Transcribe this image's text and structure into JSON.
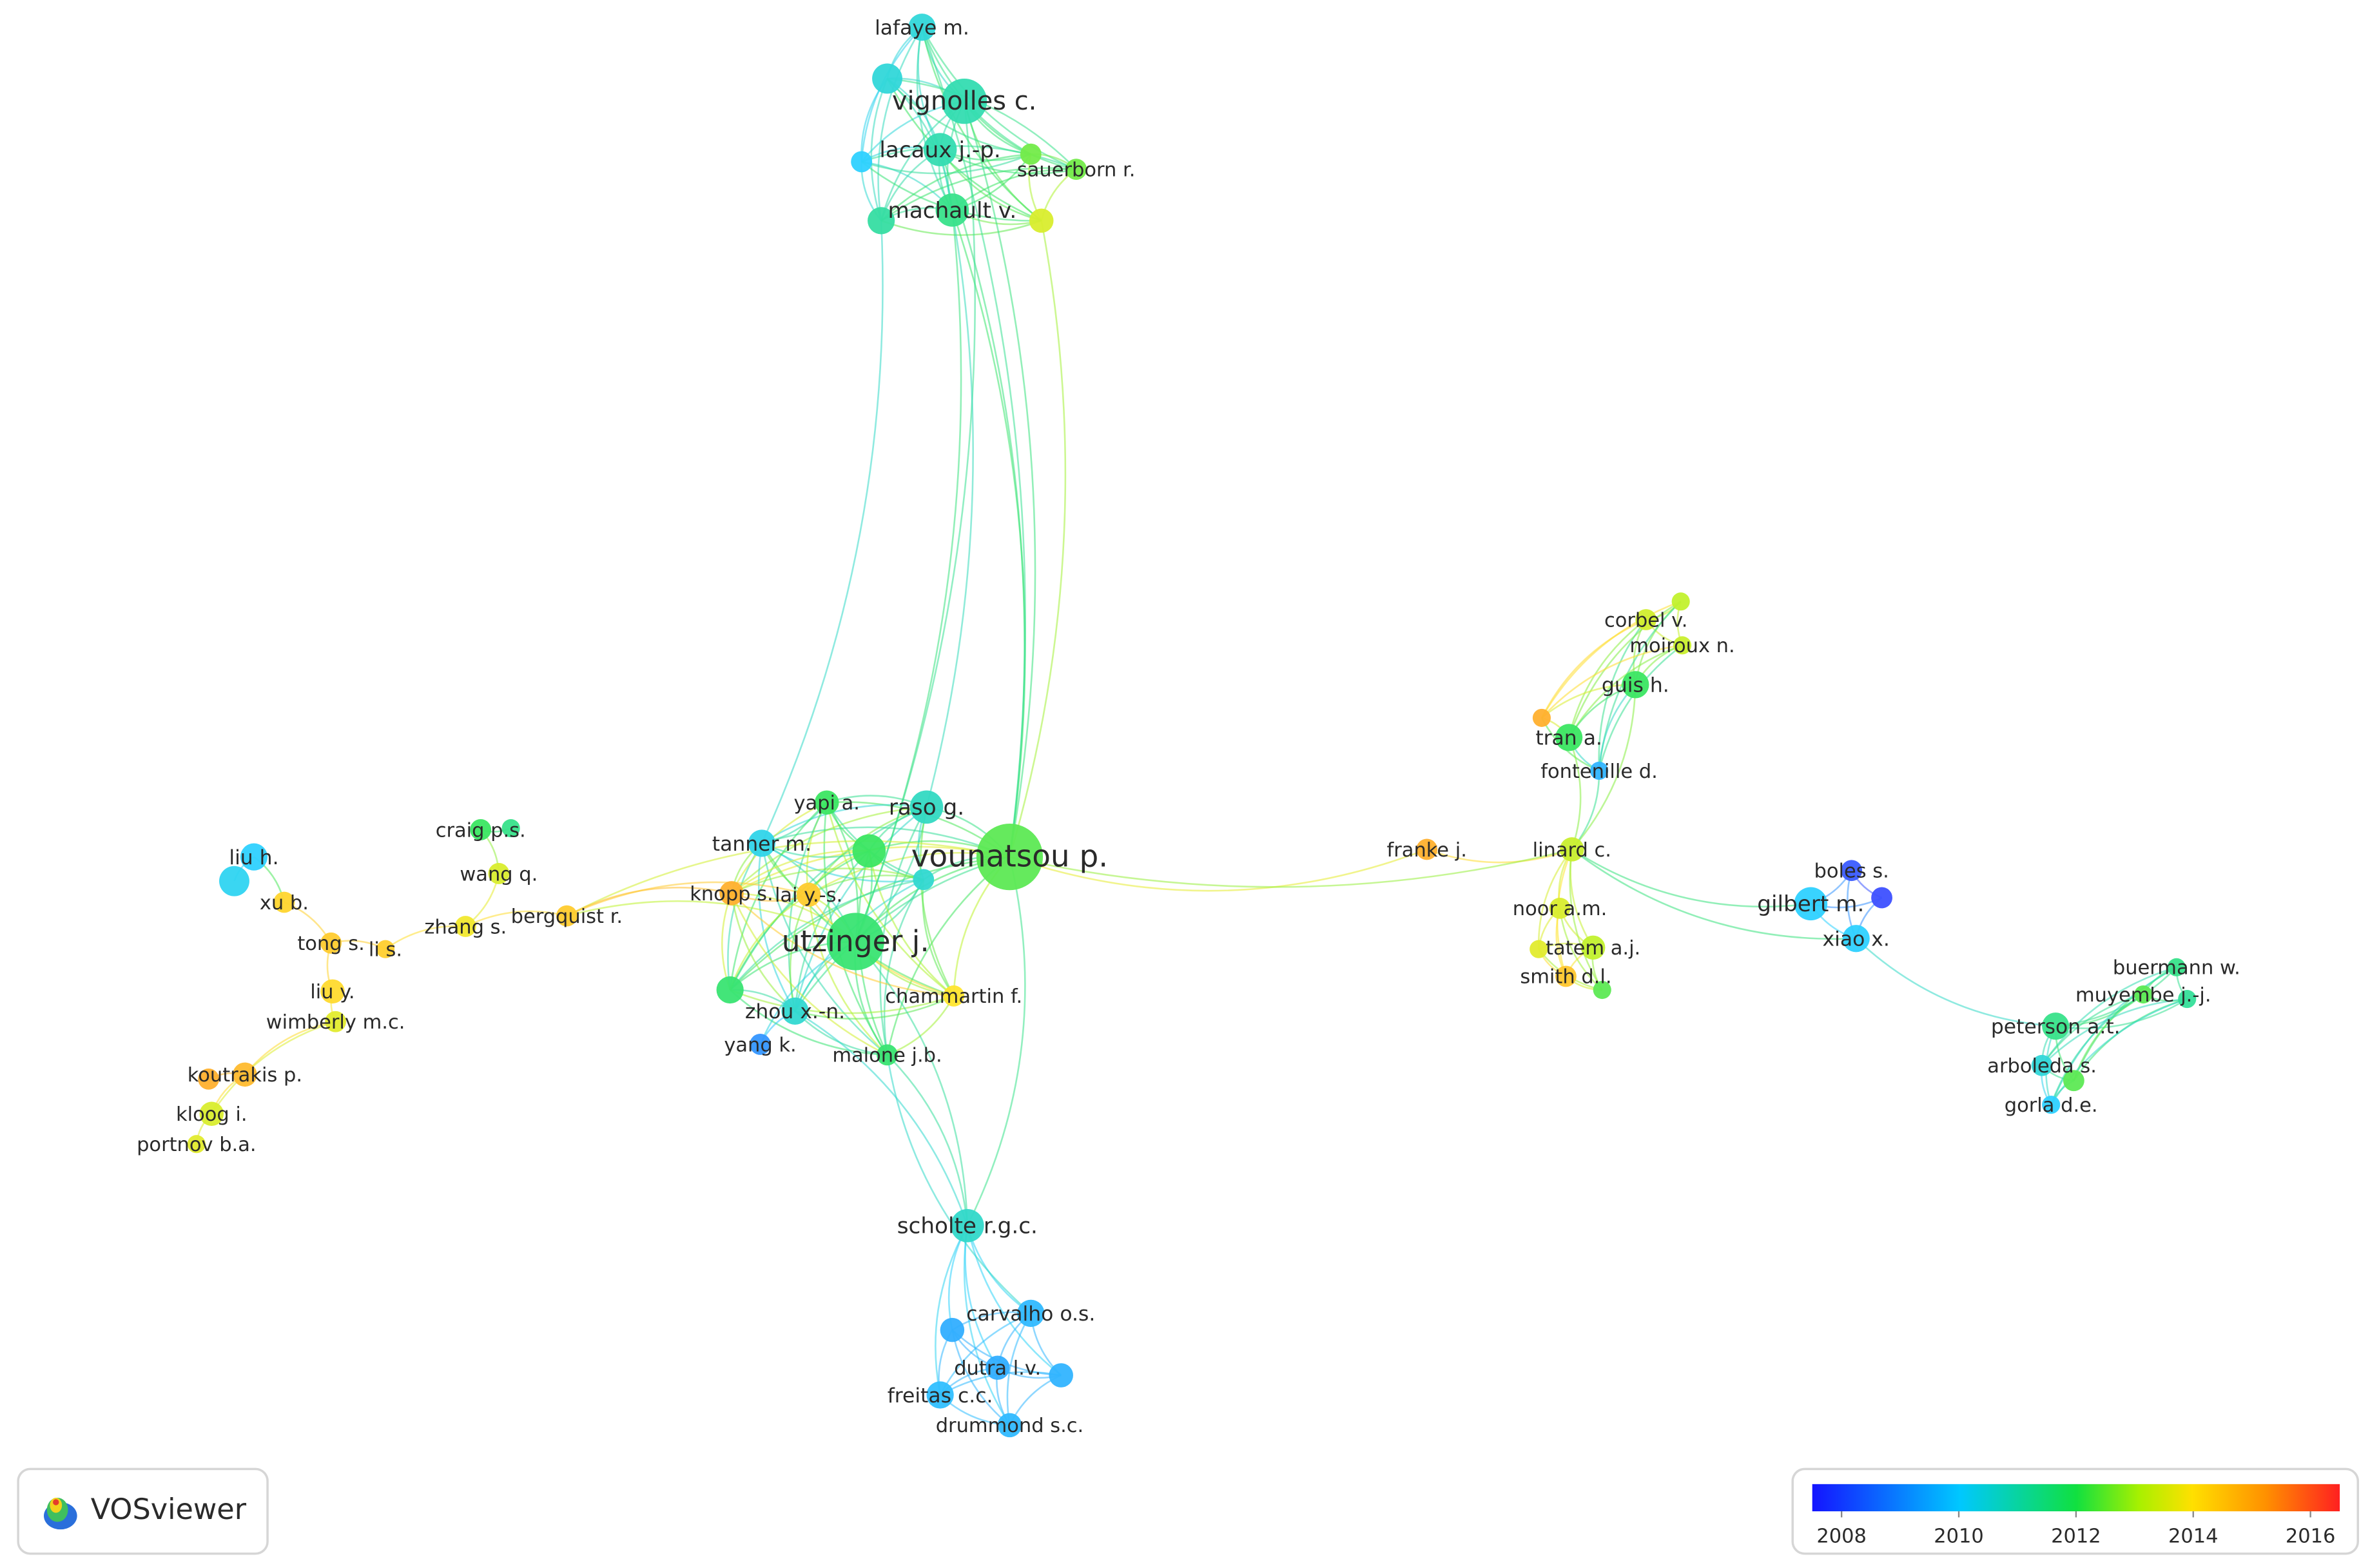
{
  "logo": "VOSviewer",
  "colorbar": {
    "range": [
      2007.5,
      2016.5
    ],
    "ticks": [
      2008,
      2010,
      2012,
      2014,
      2016
    ]
  },
  "nodes": [
    {
      "label": "lafaye m.",
      "year": 2010.5
    },
    {
      "label": "vignolles c.",
      "year": 2011
    },
    {
      "label": "lacaux j.-p.",
      "year": 2011
    },
    {
      "label": "sauerborn r.",
      "year": 2012.5
    },
    {
      "label": "machault v.",
      "year": 2011.5
    },
    {
      "label": null,
      "year": 2010.5
    },
    {
      "label": null,
      "year": 2010
    },
    {
      "label": null,
      "year": 2012.5
    },
    {
      "label": null,
      "year": 2011.2
    },
    {
      "label": null,
      "year": 2013.5
    },
    {
      "label": "vounatsou p.",
      "year": 2012.3
    },
    {
      "label": "utzinger j.",
      "year": 2011.8
    },
    {
      "label": "raso g.",
      "year": 2010.8
    },
    {
      "label": "tanner m.",
      "year": 2010.3
    },
    {
      "label": "yapi a.",
      "year": 2012
    },
    {
      "label": null,
      "year": 2012
    },
    {
      "label": null,
      "year": 2010.6
    },
    {
      "label": "knopp s.",
      "year": 2015
    },
    {
      "label": "lai y.-s.",
      "year": 2014.5
    },
    {
      "label": "zhou x.-n.",
      "year": 2010.6
    },
    {
      "label": null,
      "year": 2011.8
    },
    {
      "label": "yang k.",
      "year": 2009
    },
    {
      "label": "malone j.b.",
      "year": 2011.8
    },
    {
      "label": "chammartin f.",
      "year": 2014
    },
    {
      "label": "craig p.s.",
      "year": 2012
    },
    {
      "label": null,
      "year": 2011.5
    },
    {
      "label": "wang q.",
      "year": 2013.5
    },
    {
      "label": "zhang s.",
      "year": 2013.8
    },
    {
      "label": "bergquist r.",
      "year": 2014.5
    },
    {
      "label": "liu h.",
      "year": 2010
    },
    {
      "label": null,
      "year": 2010.2
    },
    {
      "label": "xu b.",
      "year": 2014.3
    },
    {
      "label": "tong s.",
      "year": 2014.5
    },
    {
      "label": "li s.",
      "year": 2014.4
    },
    {
      "label": "liu y.",
      "year": 2014.2
    },
    {
      "label": "wimberly m.c.",
      "year": 2013.6
    },
    {
      "label": "koutrakis p.",
      "year": 2014.8
    },
    {
      "label": null,
      "year": 2015
    },
    {
      "label": "kloog i.",
      "year": 2013.5
    },
    {
      "label": "portnov b.a.",
      "year": 2013.6
    },
    {
      "label": "scholte r.g.c.",
      "year": 2010.7
    },
    {
      "label": "carvalho o.s.",
      "year": 2009.6
    },
    {
      "label": null,
      "year": 2009.4
    },
    {
      "label": "dutra l.v.",
      "year": 2009.4
    },
    {
      "label": null,
      "year": 2009.5
    },
    {
      "label": "freitas c.c.",
      "year": 2009.7
    },
    {
      "label": "drummond s.c.",
      "year": 2009.6
    },
    {
      "label": "corbel v.",
      "year": 2013.4
    },
    {
      "label": null,
      "year": 2013.2
    },
    {
      "label": "moiroux n.",
      "year": 2013.3
    },
    {
      "label": "guis h.",
      "year": 2012
    },
    {
      "label": "tran a.",
      "year": 2012
    },
    {
      "label": null,
      "year": 2015
    },
    {
      "label": "fontenille d.",
      "year": 2009.5
    },
    {
      "label": "franke j.",
      "year": 2015
    },
    {
      "label": "linard c.",
      "year": 2013.3
    },
    {
      "label": "boles s.",
      "year": 2008
    },
    {
      "label": null,
      "year": 2007.8
    },
    {
      "label": "gilbert m.",
      "year": 2010
    },
    {
      "label": "xiao x.",
      "year": 2010
    },
    {
      "label": "noor a.m.",
      "year": 2013.5
    },
    {
      "label": "tatem a.j.",
      "year": 2013.2
    },
    {
      "label": null,
      "year": 2013.6
    },
    {
      "label": "smith d.l.",
      "year": 2014.6
    },
    {
      "label": null,
      "year": 2012.3
    },
    {
      "label": "buermann w.",
      "year": 2011.5
    },
    {
      "label": "muyembe j.-j.",
      "year": 2012.3
    },
    {
      "label": null,
      "year": 2011.3
    },
    {
      "label": "peterson a.t.",
      "year": 2011.5
    },
    {
      "label": "arboleda s.",
      "year": 2010.5
    },
    {
      "label": null,
      "year": 2012.3
    },
    {
      "label": "gorla d.e.",
      "year": 2010
    }
  ]
}
